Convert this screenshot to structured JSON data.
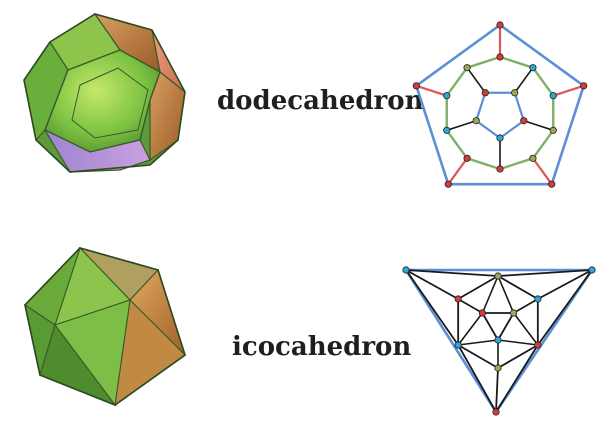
{
  "rows": [
    {
      "label": "dodecahedron"
    },
    {
      "label": "icocahedron"
    }
  ],
  "colors": {
    "outer_edge": "#5b8fd6",
    "cycle_edge": "#7fb06a",
    "spoke_edge": "#e0575a",
    "graph_edge": "#1a1a1a",
    "vertex_red": "#d83a3a",
    "vertex_blue": "#2aa7d8",
    "vertex_olive": "#a4a35a",
    "solid_green": "#7cc242",
    "solid_orange": "#d08040",
    "solid_purple": "#b08ad8"
  },
  "icons": {
    "dodecahedron_render": "dodecahedron-3d-icon",
    "icosahedron_render": "icosahedron-3d-icon"
  }
}
